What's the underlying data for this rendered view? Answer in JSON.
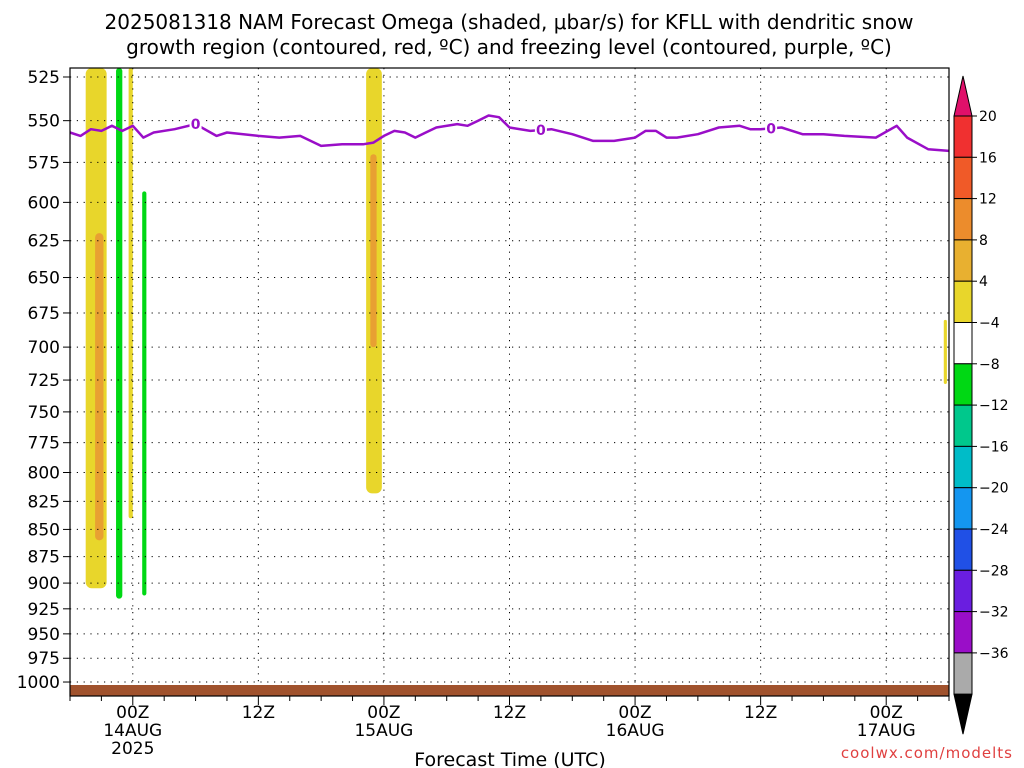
{
  "chart_data": {
    "type": "heatmap",
    "title_lines": [
      "2025081318 NAM Forecast Omega (shaded, μbar/s) for KFLL with dendritic snow",
      "growth region (contoured, red, ºC) and freezing level (contoured, purple, ºC)"
    ],
    "xlabel": "Forecast Time (UTC)",
    "x_ticks": [
      {
        "hours": 6,
        "label": "00Z",
        "sub": "14AUG",
        "sub2": "2025"
      },
      {
        "hours": 18,
        "label": "12Z",
        "sub": "",
        "sub2": ""
      },
      {
        "hours": 30,
        "label": "00Z",
        "sub": "15AUG",
        "sub2": ""
      },
      {
        "hours": 42,
        "label": "12Z",
        "sub": "",
        "sub2": ""
      },
      {
        "hours": 54,
        "label": "00Z",
        "sub": "16AUG",
        "sub2": ""
      },
      {
        "hours": 66,
        "label": "12Z",
        "sub": "",
        "sub2": ""
      },
      {
        "hours": 78,
        "label": "00Z",
        "sub": "17AUG",
        "sub2": ""
      }
    ],
    "x_range_hours": [
      0,
      84
    ],
    "y_ticks": [
      525,
      550,
      575,
      600,
      625,
      650,
      675,
      700,
      725,
      750,
      775,
      800,
      825,
      850,
      875,
      900,
      925,
      950,
      975,
      1000
    ],
    "y_range_hpa": [
      1015,
      520
    ],
    "y_scale": "log",
    "grid": true,
    "freezing_level": {
      "label": "0",
      "label_hours": [
        12,
        45,
        67
      ],
      "points": [
        [
          0,
          557
        ],
        [
          1,
          559
        ],
        [
          2,
          555
        ],
        [
          3,
          556
        ],
        [
          4,
          553
        ],
        [
          5,
          556
        ],
        [
          6,
          553
        ],
        [
          7,
          560
        ],
        [
          8,
          557
        ],
        [
          10,
          555
        ],
        [
          12,
          552
        ],
        [
          14,
          559
        ],
        [
          15,
          557
        ],
        [
          18,
          559
        ],
        [
          20,
          560
        ],
        [
          22,
          559
        ],
        [
          24,
          565
        ],
        [
          26,
          564
        ],
        [
          28,
          564
        ],
        [
          29,
          563
        ],
        [
          30,
          559
        ],
        [
          31,
          556
        ],
        [
          32,
          557
        ],
        [
          33,
          560
        ],
        [
          34,
          557
        ],
        [
          35,
          554
        ],
        [
          37,
          552
        ],
        [
          38,
          553
        ],
        [
          39,
          550
        ],
        [
          40,
          547
        ],
        [
          41,
          548
        ],
        [
          42,
          554
        ],
        [
          44,
          556
        ],
        [
          46,
          555
        ],
        [
          48,
          558
        ],
        [
          50,
          562
        ],
        [
          52,
          562
        ],
        [
          54,
          560
        ],
        [
          55,
          556
        ],
        [
          56,
          556
        ],
        [
          57,
          560
        ],
        [
          58,
          560
        ],
        [
          60,
          558
        ],
        [
          62,
          554
        ],
        [
          64,
          553
        ],
        [
          65,
          555
        ],
        [
          66,
          555
        ],
        [
          68,
          554
        ],
        [
          70,
          558
        ],
        [
          72,
          558
        ],
        [
          74,
          559
        ],
        [
          77,
          560
        ],
        [
          79,
          553
        ],
        [
          80,
          560
        ],
        [
          82,
          567
        ],
        [
          84,
          568
        ]
      ]
    },
    "shaded_regions": [
      {
        "color": "#e8d62b",
        "hour_left": 1.5,
        "hour_right": 3.5,
        "p_top": 520,
        "p_bottom": 905
      },
      {
        "color": "#e8a032",
        "hour_left": 2.4,
        "hour_right": 3.2,
        "p_top": 620,
        "p_bottom": 860
      },
      {
        "color": "#e8d62b",
        "hour_left": 5.6,
        "hour_right": 6.0,
        "p_top": 520,
        "p_bottom": 840
      },
      {
        "color": "#00d814",
        "hour_left": 4.4,
        "hour_right": 5.0,
        "p_top": 520,
        "p_bottom": 915
      },
      {
        "color": "#00d814",
        "hour_left": 6.9,
        "hour_right": 7.3,
        "p_top": 593,
        "p_bottom": 912
      },
      {
        "color": "#e8d62b",
        "hour_left": 28.3,
        "hour_right": 29.8,
        "p_top": 520,
        "p_bottom": 818
      },
      {
        "color": "#e8a032",
        "hour_left": 28.7,
        "hour_right": 29.3,
        "p_top": 570,
        "p_bottom": 700
      },
      {
        "color": "#e8d62b",
        "hour_left": 83.5,
        "hour_right": 83.8,
        "p_top": 680,
        "p_bottom": 728
      }
    ],
    "terrain_color": "#a0522d",
    "colorbar": {
      "labels": [
        "20",
        "16",
        "12",
        "8",
        "4",
        "−4",
        "−8",
        "−12",
        "−16",
        "−20",
        "−24",
        "−28",
        "−32",
        "−36"
      ],
      "colors": [
        "#f03030",
        "#f05a28",
        "#ec8c2c",
        "#e8b030",
        "#e8d62b",
        "#ffffff",
        "#00d814",
        "#00c88c",
        "#00bcc8",
        "#1496f0",
        "#2050e6",
        "#6a1ee0",
        "#9a0ec8",
        "#aaaaaa"
      ],
      "top_arrow_color": "#e0106a",
      "bottom_arrow_color": "#000000"
    }
  },
  "credit": "coolwx.com/modelts"
}
